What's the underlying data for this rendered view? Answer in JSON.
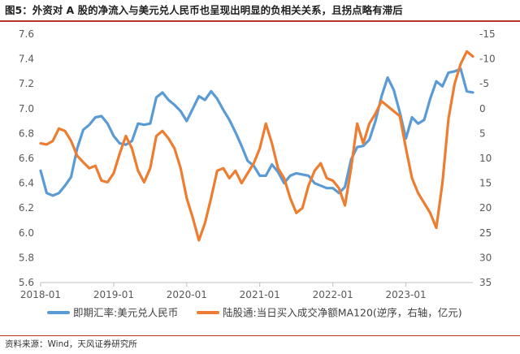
{
  "title": "图5：外资对 A 股的净流入与美元兑人民币也呈现出明显的负相关关系，且拐点略有滞后",
  "source": "资料来源：Wind，天风证券研究所",
  "colors": {
    "fx": "#5b9bd5",
    "flow": "#ed7d31",
    "accent": "#b5332a"
  },
  "chart_data": {
    "type": "line",
    "title": "图5：外资对 A 股的净流入与美元兑人民币也呈现出明显的负相关关系，且拐点略有滞后",
    "x_ticks": [
      "2018-01",
      "2019-01",
      "2020-01",
      "2021-01",
      "2022-01",
      "2023-01"
    ],
    "x_range": [
      "2018-01",
      "2023-12"
    ],
    "y_left": {
      "ticks": [
        "7.6",
        "7.4",
        "7.2",
        "7.0",
        "6.8",
        "6.6",
        "6.4",
        "6.2",
        "6.0",
        "5.8",
        "5.6"
      ],
      "range": [
        5.6,
        7.6
      ]
    },
    "y_right": {
      "ticks": [
        "-15",
        "-10",
        "-5",
        "0",
        "5",
        "10",
        "15",
        "20",
        "25",
        "30",
        "35"
      ],
      "range": [
        -15,
        35
      ],
      "inverted": true
    },
    "legend_position": "bottom",
    "grid": false,
    "series": [
      {
        "name": "即期汇率:美元兑人民币",
        "axis": "left",
        "color": "#5b9bd5",
        "points": [
          [
            "2018-01",
            6.5
          ],
          [
            "2018-02",
            6.32
          ],
          [
            "2018-03",
            6.3
          ],
          [
            "2018-04",
            6.32
          ],
          [
            "2018-05",
            6.38
          ],
          [
            "2018-06",
            6.45
          ],
          [
            "2018-07",
            6.68
          ],
          [
            "2018-08",
            6.83
          ],
          [
            "2018-09",
            6.87
          ],
          [
            "2018-10",
            6.93
          ],
          [
            "2018-11",
            6.94
          ],
          [
            "2018-12",
            6.88
          ],
          [
            "2019-01",
            6.78
          ],
          [
            "2019-02",
            6.72
          ],
          [
            "2019-03",
            6.71
          ],
          [
            "2019-04",
            6.74
          ],
          [
            "2019-05",
            6.88
          ],
          [
            "2019-06",
            6.87
          ],
          [
            "2019-07",
            6.88
          ],
          [
            "2019-08",
            7.09
          ],
          [
            "2019-09",
            7.13
          ],
          [
            "2019-10",
            7.07
          ],
          [
            "2019-11",
            7.03
          ],
          [
            "2019-12",
            6.98
          ],
          [
            "2020-01",
            6.9
          ],
          [
            "2020-02",
            7.0
          ],
          [
            "2020-03",
            7.1
          ],
          [
            "2020-04",
            7.07
          ],
          [
            "2020-05",
            7.14
          ],
          [
            "2020-06",
            7.08
          ],
          [
            "2020-07",
            6.99
          ],
          [
            "2020-08",
            6.91
          ],
          [
            "2020-09",
            6.81
          ],
          [
            "2020-10",
            6.7
          ],
          [
            "2020-11",
            6.58
          ],
          [
            "2020-12",
            6.54
          ],
          [
            "2021-01",
            6.46
          ],
          [
            "2021-02",
            6.46
          ],
          [
            "2021-03",
            6.55
          ],
          [
            "2021-04",
            6.49
          ],
          [
            "2021-05",
            6.4
          ],
          [
            "2021-06",
            6.46
          ],
          [
            "2021-07",
            6.48
          ],
          [
            "2021-08",
            6.47
          ],
          [
            "2021-09",
            6.46
          ],
          [
            "2021-10",
            6.4
          ],
          [
            "2021-11",
            6.38
          ],
          [
            "2021-12",
            6.36
          ],
          [
            "2022-01",
            6.36
          ],
          [
            "2022-02",
            6.32
          ],
          [
            "2022-03",
            6.37
          ],
          [
            "2022-04",
            6.59
          ],
          [
            "2022-05",
            6.69
          ],
          [
            "2022-06",
            6.7
          ],
          [
            "2022-07",
            6.75
          ],
          [
            "2022-08",
            6.9
          ],
          [
            "2022-09",
            7.1
          ],
          [
            "2022-10",
            7.25
          ],
          [
            "2022-11",
            7.15
          ],
          [
            "2022-12",
            6.97
          ],
          [
            "2023-01",
            6.76
          ],
          [
            "2023-02",
            6.93
          ],
          [
            "2023-03",
            6.88
          ],
          [
            "2023-04",
            6.91
          ],
          [
            "2023-05",
            7.08
          ],
          [
            "2023-06",
            7.22
          ],
          [
            "2023-07",
            7.18
          ],
          [
            "2023-08",
            7.29
          ],
          [
            "2023-09",
            7.3
          ],
          [
            "2023-10",
            7.32
          ],
          [
            "2023-11",
            7.14
          ],
          [
            "2023-12",
            7.13
          ]
        ]
      },
      {
        "name": "陆股通:当日买入成交净额MA120(逆序，右轴，亿元)",
        "axis": "right",
        "color": "#ed7d31",
        "points": [
          [
            "2018-01",
            7.0
          ],
          [
            "2018-02",
            7.2
          ],
          [
            "2018-03",
            6.5
          ],
          [
            "2018-04",
            4.0
          ],
          [
            "2018-05",
            4.5
          ],
          [
            "2018-06",
            6.5
          ],
          [
            "2018-07",
            9.5
          ],
          [
            "2018-08",
            10.8
          ],
          [
            "2018-09",
            12.0
          ],
          [
            "2018-10",
            11.5
          ],
          [
            "2018-11",
            14.5
          ],
          [
            "2018-12",
            14.8
          ],
          [
            "2019-01",
            13.0
          ],
          [
            "2019-02",
            9.0
          ],
          [
            "2019-03",
            5.5
          ],
          [
            "2019-04",
            8.0
          ],
          [
            "2019-05",
            12.5
          ],
          [
            "2019-06",
            14.8
          ],
          [
            "2019-07",
            12.0
          ],
          [
            "2019-08",
            5.5
          ],
          [
            "2019-09",
            4.5
          ],
          [
            "2019-10",
            6.0
          ],
          [
            "2019-11",
            8.0
          ],
          [
            "2019-12",
            12.0
          ],
          [
            "2020-01",
            18.0
          ],
          [
            "2020-02",
            22.0
          ],
          [
            "2020-03",
            26.5
          ],
          [
            "2020-04",
            23.0
          ],
          [
            "2020-05",
            18.0
          ],
          [
            "2020-06",
            12.5
          ],
          [
            "2020-07",
            12.0
          ],
          [
            "2020-08",
            14.0
          ],
          [
            "2020-09",
            12.5
          ],
          [
            "2020-10",
            15.0
          ],
          [
            "2020-11",
            13.0
          ],
          [
            "2020-12",
            11.0
          ],
          [
            "2021-01",
            8.0
          ],
          [
            "2021-02",
            3.0
          ],
          [
            "2021-03",
            7.0
          ],
          [
            "2021-04",
            12.0
          ],
          [
            "2021-05",
            14.0
          ],
          [
            "2021-06",
            18.0
          ],
          [
            "2021-07",
            21.0
          ],
          [
            "2021-08",
            20.0
          ],
          [
            "2021-09",
            15.5
          ],
          [
            "2021-10",
            12.5
          ],
          [
            "2021-11",
            11.0
          ],
          [
            "2021-12",
            14.0
          ],
          [
            "2022-01",
            14.5
          ],
          [
            "2022-02",
            16.0
          ],
          [
            "2022-03",
            19.5
          ],
          [
            "2022-04",
            12.0
          ],
          [
            "2022-05",
            3.0
          ],
          [
            "2022-06",
            7.0
          ],
          [
            "2022-07",
            3.0
          ],
          [
            "2022-08",
            1.0
          ],
          [
            "2022-09",
            -1.5
          ],
          [
            "2022-10",
            -0.5
          ],
          [
            "2022-11",
            0.5
          ],
          [
            "2022-12",
            1.5
          ],
          [
            "2023-01",
            8.0
          ],
          [
            "2023-02",
            14.0
          ],
          [
            "2023-03",
            17.0
          ],
          [
            "2023-04",
            19.0
          ],
          [
            "2023-05",
            21.0
          ],
          [
            "2023-06",
            24.0
          ],
          [
            "2023-07",
            15.0
          ],
          [
            "2023-08",
            2.0
          ],
          [
            "2023-09",
            -5.0
          ],
          [
            "2023-10",
            -9.0
          ],
          [
            "2023-11",
            -11.5
          ],
          [
            "2023-12",
            -10.5
          ]
        ]
      }
    ]
  }
}
